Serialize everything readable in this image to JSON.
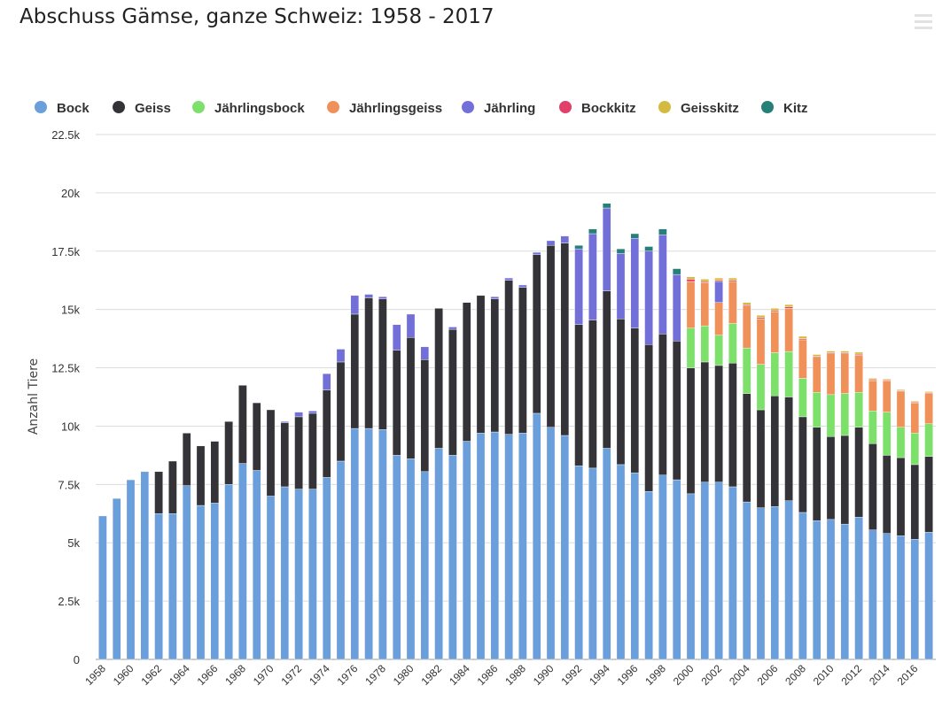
{
  "title": "Abschuss Gämse, ganze Schweiz: 1958 - 2017",
  "menu_icon": "hamburger-menu-icon",
  "chart_data": {
    "type": "bar",
    "stacked": true,
    "title": "Abschuss Gämse, ganze Schweiz: 1958 - 2017",
    "ylabel": "Anzahl Tiere",
    "xlabel": "",
    "ylim": [
      0,
      22500
    ],
    "y_ticks": [
      0,
      2500,
      5000,
      7500,
      10000,
      12500,
      15000,
      17500,
      20000,
      22500
    ],
    "y_tick_labels": [
      "0",
      "2.5k",
      "5k",
      "7.5k",
      "10k",
      "12.5k",
      "15k",
      "17.5k",
      "20k",
      "22.5k"
    ],
    "grid": true,
    "legend_position": "top-left",
    "categories": [
      1958,
      1959,
      1960,
      1961,
      1962,
      1963,
      1964,
      1965,
      1966,
      1967,
      1968,
      1969,
      1970,
      1971,
      1972,
      1973,
      1974,
      1975,
      1976,
      1977,
      1978,
      1979,
      1980,
      1981,
      1982,
      1983,
      1984,
      1985,
      1986,
      1987,
      1988,
      1989,
      1990,
      1991,
      1992,
      1993,
      1994,
      1995,
      1996,
      1997,
      1998,
      1999,
      2000,
      2001,
      2002,
      2003,
      2004,
      2005,
      2006,
      2007,
      2008,
      2009,
      2010,
      2011,
      2012,
      2013,
      2014,
      2015,
      2016,
      2017
    ],
    "x_tick_labels": [
      "1958",
      "1960",
      "1962",
      "1964",
      "1966",
      "1968",
      "1970",
      "1972",
      "1974",
      "1976",
      "1978",
      "1980",
      "1982",
      "1984",
      "1986",
      "1988",
      "1990",
      "1992",
      "1994",
      "1996",
      "1998",
      "2000",
      "2002",
      "2004",
      "2006",
      "2008",
      "2010",
      "2012",
      "2014",
      "2016"
    ],
    "series": [
      {
        "name": "Bock",
        "color": "#6a9fdc",
        "values": [
          6150,
          6900,
          7700,
          8050,
          6250,
          6250,
          7450,
          6600,
          6700,
          7500,
          8400,
          8100,
          7000,
          7400,
          7300,
          7300,
          7800,
          8500,
          9900,
          9900,
          9850,
          8750,
          8600,
          8050,
          9050,
          8750,
          9350,
          9700,
          9750,
          9650,
          9700,
          10550,
          9950,
          9600,
          8300,
          8200,
          9050,
          8350,
          8000,
          7200,
          7900,
          7700,
          7100,
          7600,
          7600,
          7400,
          6750,
          6500,
          6550,
          6800,
          6300,
          5950,
          6000,
          5800,
          6100,
          5550,
          5400,
          5300,
          5150,
          5450
        ]
      },
      {
        "name": "Geiss",
        "color": "#333338",
        "values": [
          0,
          0,
          0,
          0,
          1800,
          2250,
          2250,
          2550,
          2650,
          2700,
          3350,
          2900,
          3700,
          2750,
          3100,
          3250,
          3750,
          4250,
          4900,
          5600,
          5600,
          4500,
          5200,
          4800,
          6000,
          5400,
          5950,
          5900,
          5700,
          6600,
          6250,
          6800,
          7800,
          8250,
          6050,
          6350,
          6750,
          6250,
          6200,
          6300,
          6050,
          5950,
          5400,
          5150,
          5000,
          5300,
          4650,
          4200,
          4750,
          4450,
          4100,
          4000,
          3550,
          3800,
          3850,
          3700,
          3350,
          3350,
          3200,
          3250
        ]
      },
      {
        "name": "Jährlingsbock",
        "color": "#7de06a",
        "values": [
          0,
          0,
          0,
          0,
          0,
          0,
          0,
          0,
          0,
          0,
          0,
          0,
          0,
          0,
          0,
          0,
          0,
          0,
          0,
          0,
          0,
          0,
          0,
          0,
          0,
          0,
          0,
          0,
          0,
          0,
          0,
          0,
          0,
          0,
          0,
          0,
          0,
          0,
          0,
          0,
          0,
          0,
          1700,
          1550,
          1300,
          1700,
          1950,
          1950,
          1850,
          1950,
          1650,
          1500,
          1800,
          1800,
          1500,
          1400,
          1850,
          1300,
          1350,
          1400
        ]
      },
      {
        "name": "Jährlingsgeiss",
        "color": "#f0915a",
        "values": [
          0,
          0,
          0,
          0,
          0,
          0,
          0,
          0,
          0,
          0,
          0,
          0,
          0,
          0,
          0,
          0,
          0,
          0,
          0,
          0,
          0,
          0,
          0,
          0,
          0,
          0,
          0,
          0,
          0,
          0,
          0,
          0,
          0,
          0,
          0,
          0,
          0,
          0,
          0,
          0,
          0,
          0,
          2000,
          1850,
          1400,
          1800,
          1800,
          1950,
          1750,
          1850,
          1650,
          1500,
          1750,
          1700,
          1600,
          1300,
          1350,
          1550,
          1300,
          1300
        ]
      },
      {
        "name": "Jährling",
        "color": "#7270d8",
        "values": [
          0,
          0,
          0,
          0,
          0,
          0,
          0,
          0,
          0,
          0,
          0,
          0,
          0,
          50,
          200,
          100,
          700,
          550,
          800,
          150,
          100,
          1100,
          1000,
          550,
          0,
          100,
          0,
          0,
          100,
          100,
          100,
          100,
          200,
          300,
          3250,
          3700,
          3550,
          2800,
          3850,
          4000,
          4250,
          2850,
          0,
          0,
          900,
          0,
          0,
          0,
          0,
          0,
          0,
          0,
          0,
          0,
          0,
          0,
          0,
          0,
          0,
          0
        ]
      },
      {
        "name": "Bockkitz",
        "color": "#e0406a",
        "values": [
          0,
          0,
          0,
          0,
          0,
          0,
          0,
          0,
          0,
          0,
          0,
          0,
          0,
          0,
          0,
          0,
          0,
          0,
          0,
          0,
          0,
          0,
          0,
          0,
          0,
          0,
          0,
          0,
          0,
          0,
          0,
          0,
          0,
          0,
          0,
          0,
          0,
          0,
          0,
          0,
          0,
          0,
          100,
          50,
          50,
          50,
          50,
          50,
          50,
          60,
          50,
          40,
          40,
          40,
          40,
          40,
          30,
          30,
          30,
          30
        ]
      },
      {
        "name": "Geisskitz",
        "color": "#d4bb40",
        "values": [
          0,
          0,
          0,
          0,
          0,
          0,
          0,
          0,
          0,
          0,
          0,
          0,
          0,
          0,
          0,
          0,
          0,
          0,
          0,
          0,
          0,
          0,
          0,
          0,
          0,
          0,
          0,
          0,
          0,
          0,
          0,
          0,
          0,
          0,
          0,
          0,
          0,
          0,
          0,
          0,
          0,
          0,
          100,
          100,
          100,
          100,
          100,
          100,
          100,
          100,
          100,
          80,
          80,
          80,
          80,
          60,
          40,
          40,
          40,
          50
        ]
      },
      {
        "name": "Kitz",
        "color": "#268078",
        "values": [
          0,
          0,
          0,
          0,
          0,
          0,
          0,
          0,
          0,
          0,
          0,
          0,
          0,
          0,
          0,
          0,
          0,
          0,
          0,
          0,
          0,
          0,
          0,
          0,
          0,
          0,
          0,
          0,
          0,
          0,
          0,
          0,
          0,
          0,
          150,
          200,
          200,
          200,
          200,
          200,
          250,
          250,
          0,
          0,
          0,
          0,
          0,
          0,
          0,
          0,
          0,
          0,
          0,
          0,
          0,
          0,
          0,
          0,
          0,
          0
        ]
      }
    ]
  }
}
